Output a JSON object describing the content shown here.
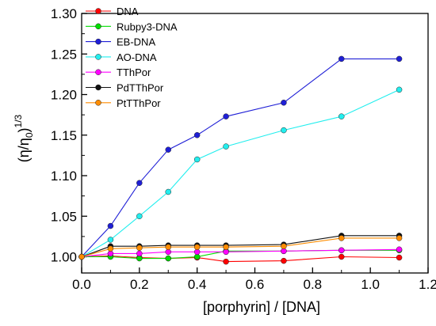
{
  "chart_data": {
    "type": "line",
    "title": "",
    "xlabel": "[porphyrin] / [DNA]",
    "ylabel_parts": {
      "open": "(η/η",
      "sub": "0",
      "close": ")",
      "sup": "1/3"
    },
    "xlim": [
      0.0,
      1.2
    ],
    "ylim": [
      0.98,
      1.3
    ],
    "xticks": [
      0.0,
      0.2,
      0.4,
      0.6,
      0.8,
      1.0,
      1.2
    ],
    "xtick_labels": [
      "0.0",
      "0.2",
      "0.4",
      "0.6",
      "0.8",
      "1.0",
      "1.2"
    ],
    "yticks": [
      1.0,
      1.05,
      1.1,
      1.15,
      1.2,
      1.25,
      1.3
    ],
    "ytick_labels": [
      "1.00",
      "1.05",
      "1.10",
      "1.15",
      "1.20",
      "1.25",
      "1.30"
    ],
    "grid": false,
    "legend_position": "top-left",
    "x": [
      0.0,
      0.1,
      0.2,
      0.3,
      0.4,
      0.5,
      0.7,
      0.9,
      1.1
    ],
    "series": [
      {
        "name": "DNA",
        "color": "#ff0000",
        "values": [
          1.0,
          1.001,
          0.999,
          0.998,
          0.999,
          0.994,
          0.995,
          1.0,
          0.999
        ]
      },
      {
        "name": "Rubpy3-DNA",
        "color": "#00dd00",
        "values": [
          1.0,
          1.0,
          0.998,
          0.998,
          1.0,
          1.007,
          1.007,
          1.008,
          1.008
        ]
      },
      {
        "name": "EB-DNA",
        "color": "#1f1fd6",
        "values": [
          1.0,
          1.038,
          1.091,
          1.132,
          1.15,
          1.173,
          1.19,
          1.244,
          1.244
        ]
      },
      {
        "name": "AO-DNA",
        "color": "#22eeee",
        "values": [
          1.0,
          1.021,
          1.05,
          1.08,
          1.12,
          1.136,
          1.156,
          1.173,
          1.206
        ]
      },
      {
        "name": "TThPor",
        "color": "#ff00ff",
        "values": [
          1.0,
          1.004,
          1.004,
          1.006,
          1.006,
          1.006,
          1.007,
          1.008,
          1.009
        ]
      },
      {
        "name": "PdTThPor",
        "color": "#111111",
        "values": [
          1.0,
          1.013,
          1.013,
          1.014,
          1.014,
          1.014,
          1.015,
          1.026,
          1.026
        ]
      },
      {
        "name": "PtTThPor",
        "color": "#ff8c00",
        "values": [
          1.0,
          1.01,
          1.011,
          1.012,
          1.012,
          1.012,
          1.013,
          1.023,
          1.023
        ]
      }
    ]
  }
}
